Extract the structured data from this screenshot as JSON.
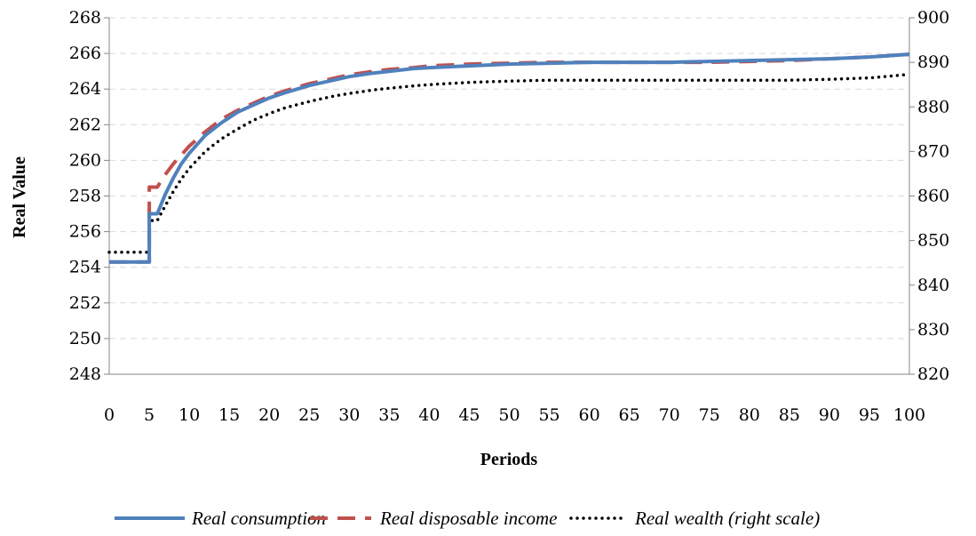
{
  "chart_data": {
    "type": "line",
    "xlabel": "Periods",
    "ylabel": "Real Value",
    "x_ticks": [
      "0",
      "5",
      "10",
      "15",
      "20",
      "25",
      "30",
      "35",
      "40",
      "45",
      "50",
      "55",
      "60",
      "65",
      "70",
      "75",
      "80",
      "85",
      "90",
      "95",
      "100"
    ],
    "xlim": [
      0,
      100
    ],
    "ylim": [
      248,
      268
    ],
    "y_ticks": [
      "248",
      "250",
      "252",
      "254",
      "256",
      "258",
      "260",
      "262",
      "264",
      "266",
      "268"
    ],
    "y2lim": [
      820,
      900
    ],
    "y2_ticks": [
      "820",
      "830",
      "840",
      "850",
      "860",
      "870",
      "880",
      "890",
      "900"
    ],
    "grid": "horizontal dashed",
    "legend_position": "bottom",
    "x": [
      0,
      1,
      2,
      3,
      4,
      5,
      6,
      7,
      8,
      9,
      10,
      12,
      14,
      16,
      18,
      20,
      22,
      25,
      28,
      30,
      33,
      35,
      38,
      40,
      45,
      50,
      55,
      60,
      65,
      70,
      75,
      80,
      85,
      90,
      95,
      100
    ],
    "series": [
      {
        "name": "Real consumption",
        "axis": "left",
        "color": "#4f81bd",
        "style": "solid",
        "values": [
          254.3,
          254.3,
          254.3,
          254.3,
          254.3,
          254.3,
          257.0,
          258.1,
          259.0,
          259.8,
          260.4,
          261.4,
          262.1,
          262.7,
          263.1,
          263.5,
          263.8,
          264.2,
          264.5,
          264.7,
          264.9,
          265.0,
          265.15,
          265.2,
          265.3,
          265.4,
          265.45,
          265.5,
          265.5,
          265.5,
          265.55,
          265.6,
          265.65,
          265.7,
          265.8,
          265.95
        ]
      },
      {
        "name": "Real disposable income",
        "axis": "left",
        "color": "#c0504d",
        "style": "dashed",
        "values": [
          254.3,
          254.3,
          254.3,
          254.3,
          254.3,
          254.3,
          258.5,
          259.2,
          259.8,
          260.3,
          260.8,
          261.6,
          262.3,
          262.8,
          263.2,
          263.6,
          263.9,
          264.3,
          264.6,
          264.8,
          265.0,
          265.1,
          265.2,
          265.3,
          265.4,
          265.45,
          265.5,
          265.5,
          265.5,
          265.5,
          265.5,
          265.55,
          265.6,
          265.7,
          265.8,
          265.95
        ]
      },
      {
        "name": "Real wealth (right scale)",
        "axis": "right",
        "color": "#000000",
        "style": "dotted",
        "values": [
          847.4,
          847.4,
          847.4,
          847.4,
          847.4,
          847.4,
          854.5,
          857.8,
          861.0,
          863.8,
          866.2,
          870.0,
          872.8,
          875.0,
          877.0,
          878.5,
          879.8,
          881.2,
          882.4,
          883.0,
          883.8,
          884.2,
          884.7,
          885.0,
          885.5,
          885.8,
          886.0,
          886.0,
          886.0,
          886.0,
          886.0,
          886.0,
          886.0,
          886.2,
          886.5,
          887.3
        ]
      }
    ]
  }
}
